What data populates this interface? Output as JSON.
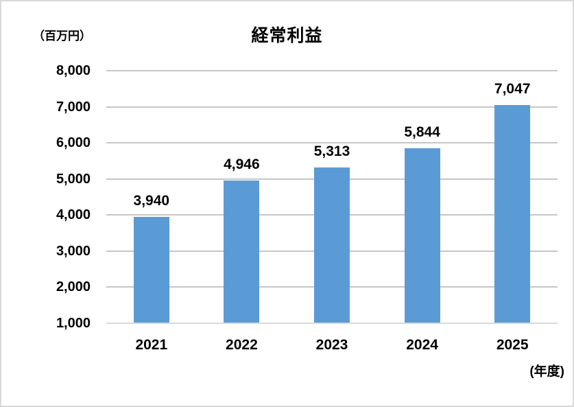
{
  "chart_data": {
    "type": "bar",
    "title": "経常利益",
    "unit_label": "（百万円）",
    "x_axis_note": "(年度)",
    "categories": [
      "2021",
      "2022",
      "2023",
      "2024",
      "2025"
    ],
    "values": [
      3940,
      4946,
      5313,
      5844,
      7047
    ],
    "value_labels": [
      "3,940",
      "4,946",
      "5,313",
      "5,844",
      "7,047"
    ],
    "y_ticks": [
      1000,
      2000,
      3000,
      4000,
      5000,
      6000,
      7000,
      8000
    ],
    "y_tick_labels": [
      "1,000",
      "2,000",
      "3,000",
      "4,000",
      "5,000",
      "6,000",
      "7,000",
      "8,000"
    ],
    "ylim": [
      1000,
      8000
    ],
    "grid": true,
    "legend": "none",
    "bar_color": "#5B9BD5",
    "gridline_color": "#C6C6C6",
    "axis_line_color": "#D9D9D9",
    "text_color": "#000000"
  }
}
